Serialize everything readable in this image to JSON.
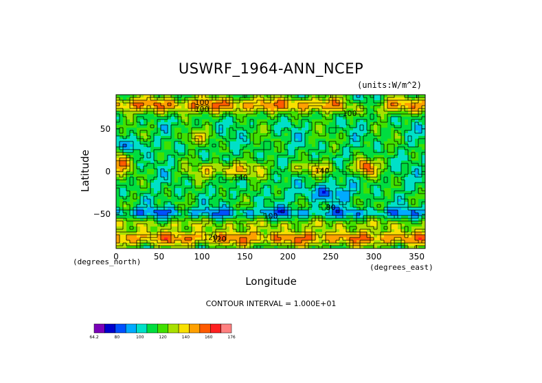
{
  "chart_data": {
    "type": "heatmap",
    "title": "USWRF_1964-ANN_NCEP",
    "units": "(units:W/m^2)",
    "xlabel": "Longitude",
    "ylabel": "Latitude",
    "x_unit": "(degrees_north)",
    "y_unit": "(degrees_east)",
    "xlim": [
      0,
      360
    ],
    "ylim": [
      -90,
      90
    ],
    "x_ticks": [
      "0",
      "50",
      "100",
      "150",
      "200",
      "250",
      "300",
      "350"
    ],
    "y_ticks": [
      "50",
      "0",
      "-50"
    ],
    "contour_interval": "CONTOUR INTERVAL = 1.000E+01",
    "contour_labels": [
      "100",
      "100",
      "100",
      "120",
      "120",
      "140",
      "140",
      "100",
      "80"
    ],
    "colorbar": {
      "labels": [
        "64.2",
        "80",
        "100",
        "120",
        "140",
        "160",
        "176"
      ],
      "colors": [
        "#7a00b8",
        "#0000cc",
        "#0050ff",
        "#00aaff",
        "#00e0c8",
        "#00dd40",
        "#40e000",
        "#a8e000",
        "#f8e000",
        "#ffa000",
        "#ff5a00",
        "#ff2020",
        "#ff8080"
      ]
    },
    "grid": false
  }
}
